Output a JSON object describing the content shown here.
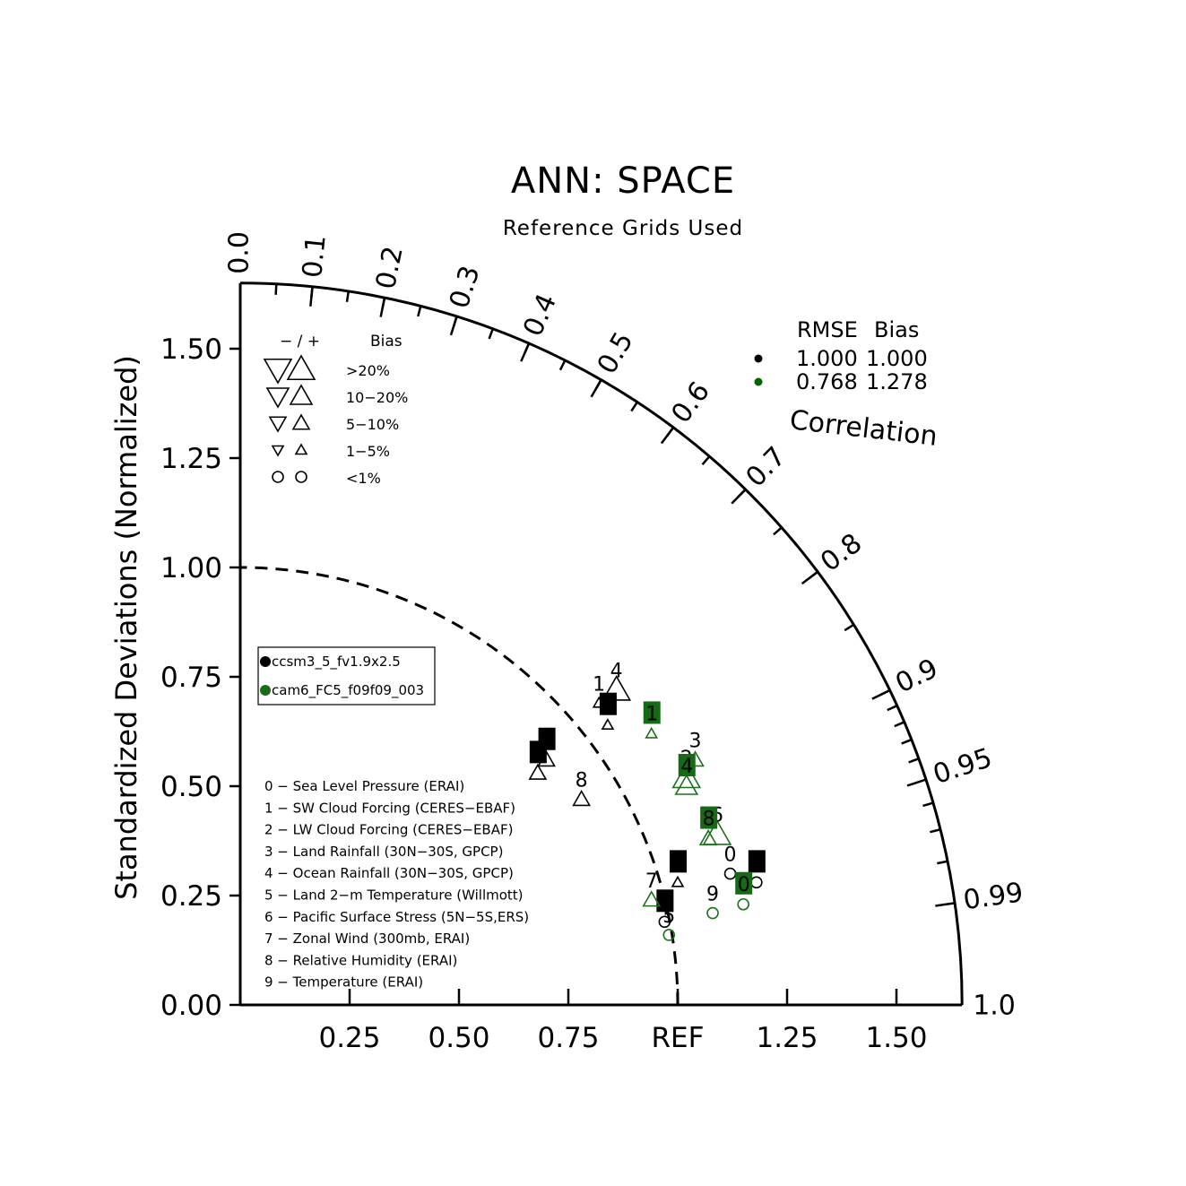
{
  "chart_data": {
    "type": "scatter",
    "title": "ANN: SPACE",
    "subtitle": "Reference Grids Used",
    "ylabel": "Standardized Deviations (Normalized)",
    "correlation_label": "Correlation",
    "ref_label": "REF",
    "std_range": [
      0,
      1.65
    ],
    "y_ticks": [
      "0.00",
      "0.25",
      "0.50",
      "0.75",
      "1.00",
      "1.25",
      "1.50"
    ],
    "x_ticks": [
      "0.25",
      "0.50",
      "0.75",
      "REF",
      "1.25",
      "1.50"
    ],
    "corr_ticks": [
      "0.0",
      "0.1",
      "0.2",
      "0.3",
      "0.4",
      "0.5",
      "0.6",
      "0.7",
      "0.8",
      "0.9",
      "0.95",
      "0.99",
      "1.0"
    ],
    "bias_legend": {
      "header_sign": "−  /  +",
      "header_bias": "Bias",
      "rows": [
        ">20%",
        "10−20%",
        "5−10%",
        "1−5%",
        "<1%"
      ]
    },
    "rmse_table": {
      "header_rmse": "RMSE",
      "header_bias": "Bias",
      "rows": [
        {
          "rmse": "1.000",
          "bias": "1.000",
          "color": "#000000"
        },
        {
          "rmse": "0.768",
          "bias": "1.278",
          "color": "#006400"
        }
      ]
    },
    "cases": [
      {
        "name": "ccsm3_5_fv1.9x2.5",
        "color": "#000000"
      },
      {
        "name": "cam6_FC5_f09f09_003",
        "color": "#1a6b1a"
      }
    ],
    "variables": [
      "0  −  Sea Level Pressure (ERAI)",
      "1  −  SW Cloud Forcing (CERES−EBAF)",
      "2  −  LW Cloud Forcing (CERES−EBAF)",
      "3  −  Land Rainfall (30N−30S, GPCP)",
      "4  −  Ocean Rainfall (30N−30S, GPCP)",
      "5  −  Land 2−m Temperature (Willmott)",
      "6  −  Pacific Surface Stress (5N−5S,ERS)",
      "7  −  Zonal Wind (300mb, ERAI)",
      "8  −  Relative Humidity (ERAI)",
      "9  −  Temperature (ERAI)"
    ],
    "series": [
      {
        "name": "ccsm3_5_fv1.9x2.5",
        "points": [
          {
            "label": "0",
            "x": 1.12,
            "y": 0.3,
            "bias": "<1%"
          },
          {
            "label": "1",
            "x": 0.82,
            "y": 0.69,
            "bias": "1-5%"
          },
          {
            "label": "2",
            "x": 0.84,
            "y": 0.64,
            "bias": "1-5%"
          },
          {
            "label": "3",
            "x": 0.7,
            "y": 0.56,
            "bias": "5-10%"
          },
          {
            "label": "4",
            "x": 0.86,
            "y": 0.72,
            "bias": ">20%"
          },
          {
            "label": "5",
            "x": 0.97,
            "y": 0.19,
            "bias": "<1%"
          },
          {
            "label": "6",
            "x": 0.68,
            "y": 0.53,
            "bias": "5-10%"
          },
          {
            "label": "7",
            "x": 1.0,
            "y": 0.28,
            "bias": "1-5%"
          },
          {
            "label": "8",
            "x": 0.78,
            "y": 0.47,
            "bias": "5-10%"
          },
          {
            "label": "9",
            "x": 1.18,
            "y": 0.28,
            "bias": "<1%"
          }
        ]
      },
      {
        "name": "cam6_FC5_f09f09_003",
        "points": [
          {
            "label": "0",
            "x": 1.15,
            "y": 0.23,
            "bias": "<1%"
          },
          {
            "label": "1",
            "x": 0.94,
            "y": 0.62,
            "bias": "1-5%"
          },
          {
            "label": "2",
            "x": 1.02,
            "y": 0.52,
            "bias": ">20%"
          },
          {
            "label": "3",
            "x": 1.04,
            "y": 0.56,
            "bias": "5-10%"
          },
          {
            "label": "4",
            "x": 1.02,
            "y": 0.5,
            "bias": "10-20%"
          },
          {
            "label": "5",
            "x": 0.98,
            "y": 0.16,
            "bias": "<1%"
          },
          {
            "label": "6",
            "x": 1.09,
            "y": 0.39,
            "bias": ">20%"
          },
          {
            "label": "7",
            "x": 0.94,
            "y": 0.24,
            "bias": "5-10%"
          },
          {
            "label": "8",
            "x": 1.07,
            "y": 0.38,
            "bias": "5-10%"
          },
          {
            "label": "9",
            "x": 1.08,
            "y": 0.21,
            "bias": "<1%"
          }
        ]
      }
    ]
  }
}
